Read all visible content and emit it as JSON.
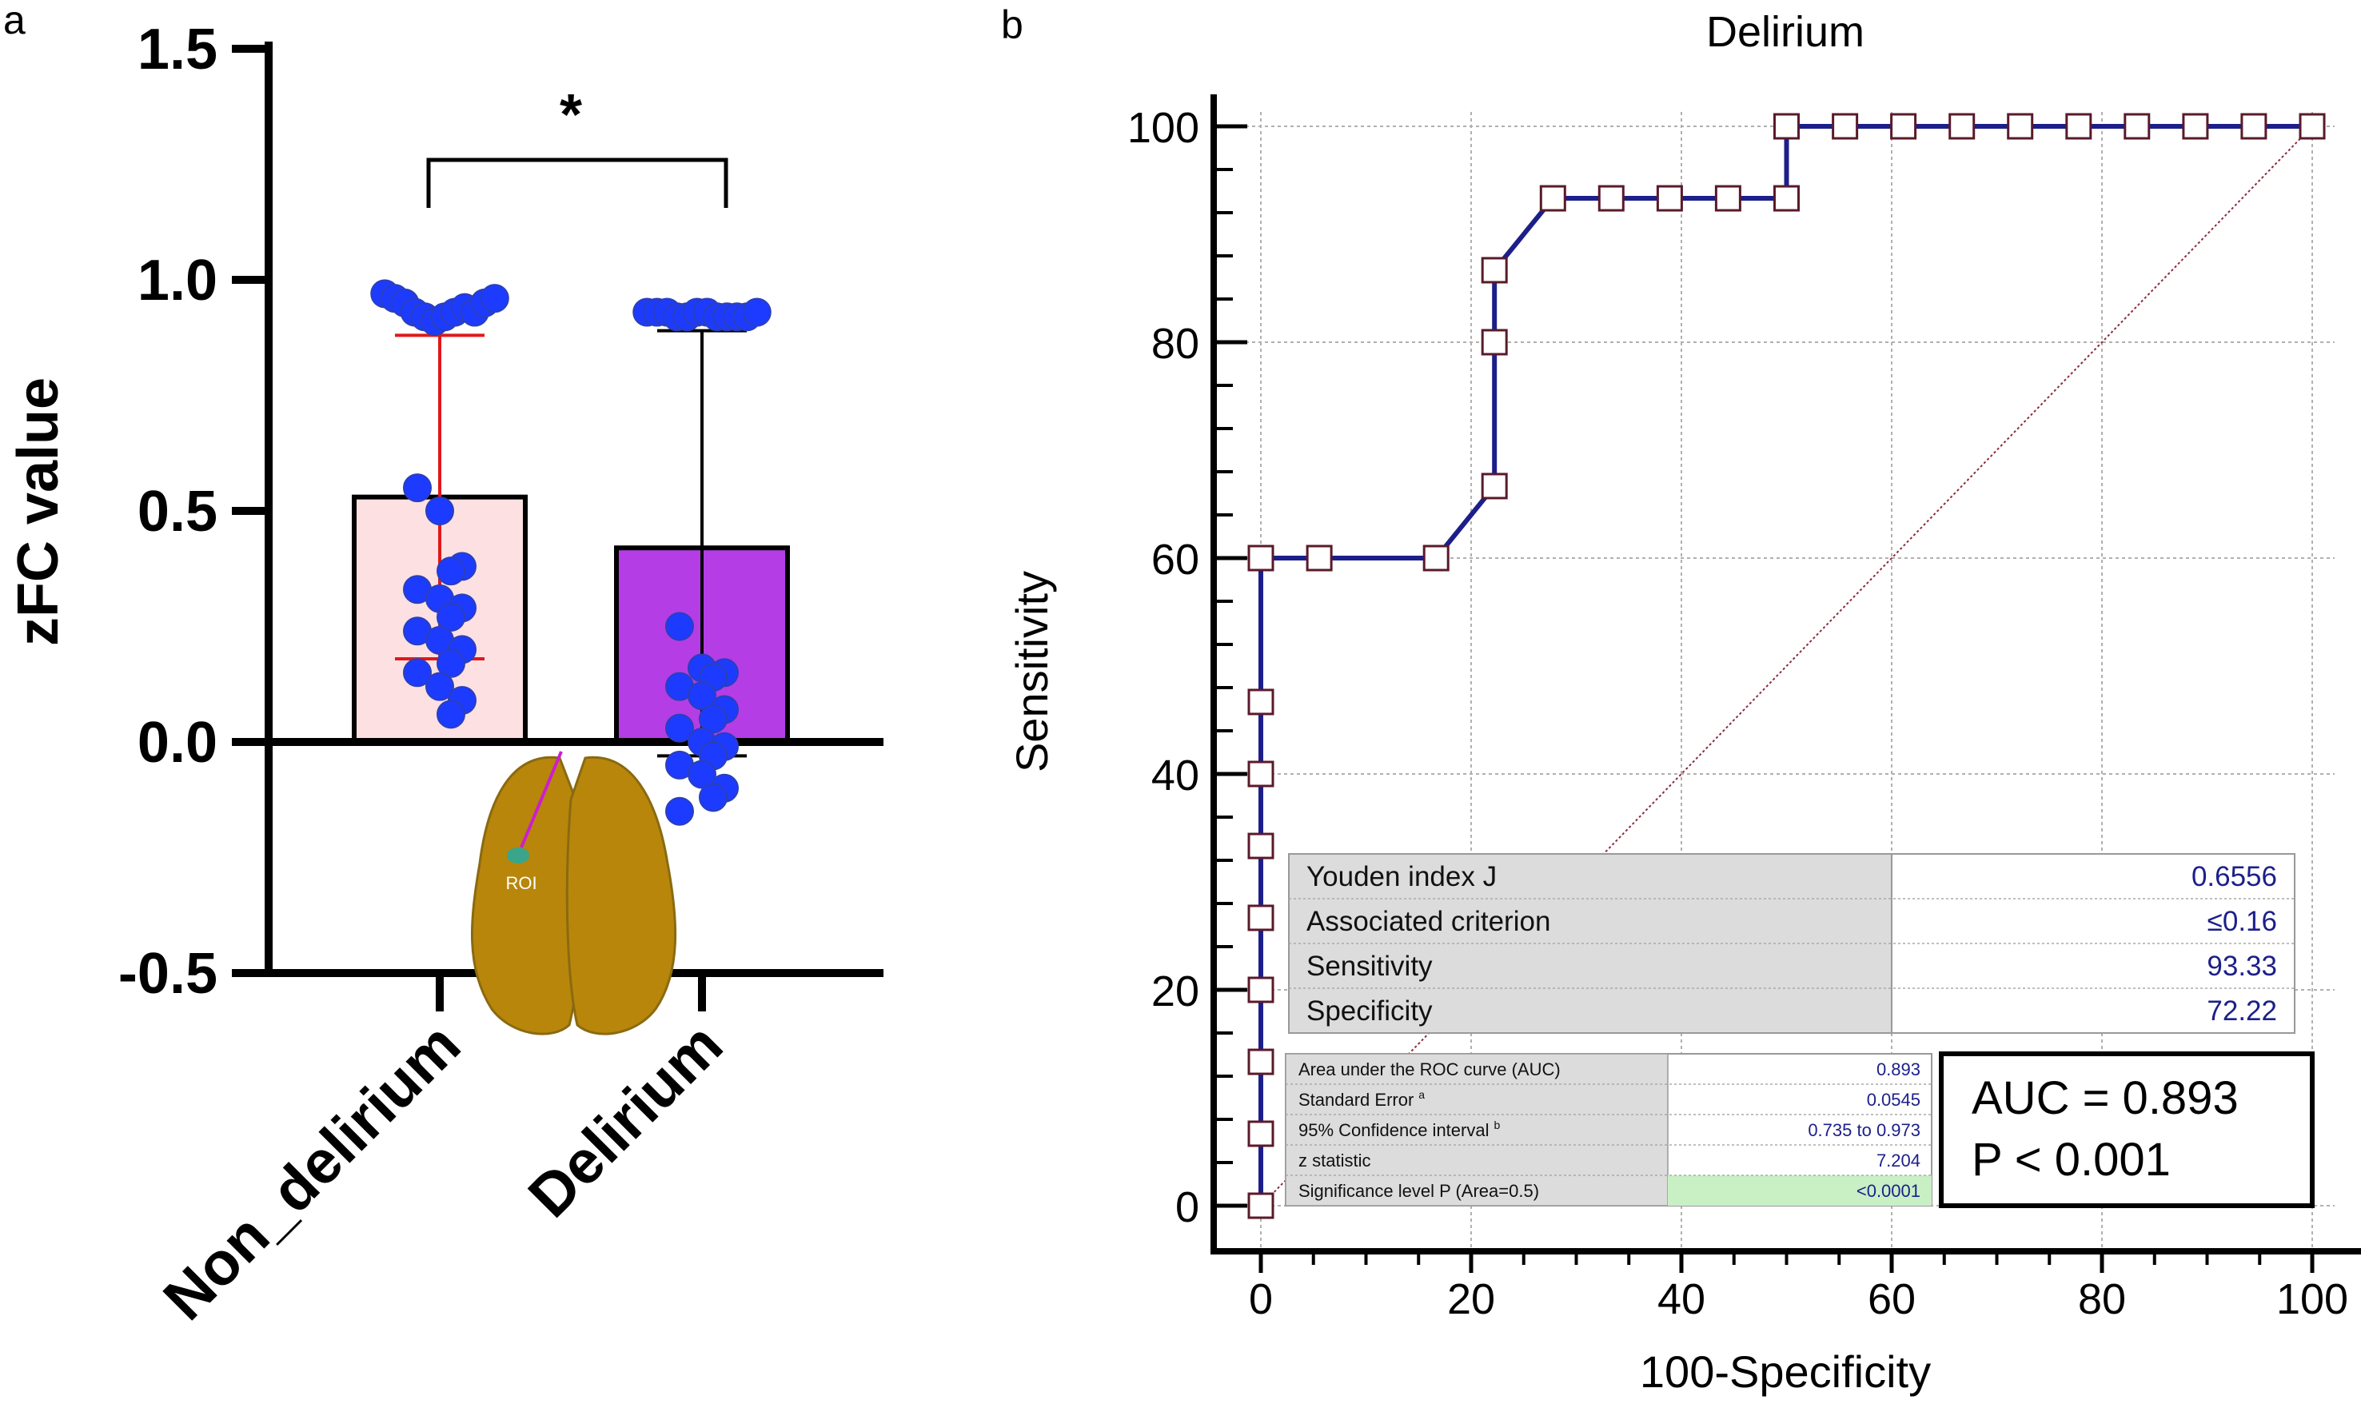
{
  "chart_data": [
    {
      "panel": "a",
      "type": "bar",
      "title": "",
      "ylabel": "zFC value",
      "xlabel": "",
      "ylim": [
        -0.5,
        1.5
      ],
      "yticks": [
        -0.5,
        0.0,
        0.5,
        1.0,
        1.5
      ],
      "ytick_labels": [
        "-0.5",
        "0.0",
        "0.5",
        "1.0",
        "1.5"
      ],
      "categories": [
        "Non_delirium",
        "Delirium"
      ],
      "values": [
        0.53,
        0.42
      ],
      "error_low": [
        0.18,
        -0.03
      ],
      "error_high": [
        0.88,
        0.89
      ],
      "bar_colors": [
        "#fde0e2",
        "#b43de6"
      ],
      "errorbar_colors": [
        "#e0191c",
        "#000000"
      ],
      "significance": "*",
      "inset_label": "ROI",
      "points": [
        [
          0.97,
          0.96,
          0.95,
          0.93,
          0.92,
          0.91,
          0.92,
          0.93,
          0.94,
          0.93,
          0.95,
          0.96,
          0.55,
          0.5,
          0.38,
          0.37,
          0.33,
          0.31,
          0.29,
          0.27,
          0.24,
          0.22,
          0.2,
          0.17,
          0.15,
          0.12,
          0.09,
          0.06
        ],
        [
          0.93,
          0.93,
          0.93,
          0.92,
          0.92,
          0.93,
          0.93,
          0.92,
          0.92,
          0.92,
          0.92,
          0.93,
          0.25,
          0.16,
          0.15,
          0.14,
          0.12,
          0.1,
          0.07,
          0.05,
          0.03,
          0.0,
          -0.01,
          -0.03,
          -0.05,
          -0.07,
          -0.1,
          -0.12,
          -0.15
        ]
      ]
    },
    {
      "panel": "b",
      "type": "line",
      "title": "Delirium",
      "xlabel": "100-Specificity",
      "ylabel": "Sensitivity",
      "xlim": [
        0,
        100
      ],
      "ylim": [
        0,
        100
      ],
      "xticks": [
        0,
        20,
        40,
        60,
        80,
        100
      ],
      "yticks": [
        0,
        20,
        40,
        60,
        80,
        100
      ],
      "series": [
        {
          "name": "ROC curve",
          "color": "#1c1f8a",
          "x": [
            0,
            0,
            0,
            0,
            0,
            0,
            0,
            0,
            0,
            0,
            0,
            5.56,
            16.67,
            22.22,
            22.22,
            22.22,
            27.78,
            33.33,
            38.89,
            44.44,
            50,
            50,
            55.56,
            61.11,
            66.67,
            72.22,
            77.78,
            83.33,
            88.89,
            94.44,
            100
          ],
          "y": [
            0,
            6.67,
            13.33,
            20,
            26.67,
            33.33,
            40,
            46.67,
            60,
            60,
            60,
            60,
            60,
            66.67,
            80,
            86.67,
            93.33,
            93.33,
            93.33,
            93.33,
            93.33,
            100,
            100,
            100,
            100,
            100,
            100,
            100,
            100,
            100,
            100
          ]
        },
        {
          "name": "reference line",
          "color": "#8b2b3a",
          "x": [
            0,
            100
          ],
          "y": [
            0,
            100
          ]
        }
      ],
      "stats_table": [
        {
          "label": "Youden index J",
          "value": "0.6556"
        },
        {
          "label": "Associated criterion",
          "value": "≤0.16"
        },
        {
          "label": "Sensitivity",
          "value": "93.33"
        },
        {
          "label": "Specificity",
          "value": "72.22"
        }
      ],
      "auc_table": [
        {
          "label": "Area under the ROC curve (AUC)",
          "sup": "",
          "value": "0.893"
        },
        {
          "label": "Standard Error",
          "sup": "a",
          "value": "0.0545"
        },
        {
          "label": "95% Confidence interval",
          "sup": "b",
          "value": "0.735 to 0.973"
        },
        {
          "label": "z statistic",
          "sup": "",
          "value": "7.204"
        },
        {
          "label": "Significance level P (Area=0.5)",
          "sup": "",
          "value": "<0.0001"
        }
      ],
      "auc_box": [
        "AUC = 0.893",
        "P < 0.001"
      ]
    }
  ],
  "panel_labels": [
    "a",
    "b"
  ]
}
